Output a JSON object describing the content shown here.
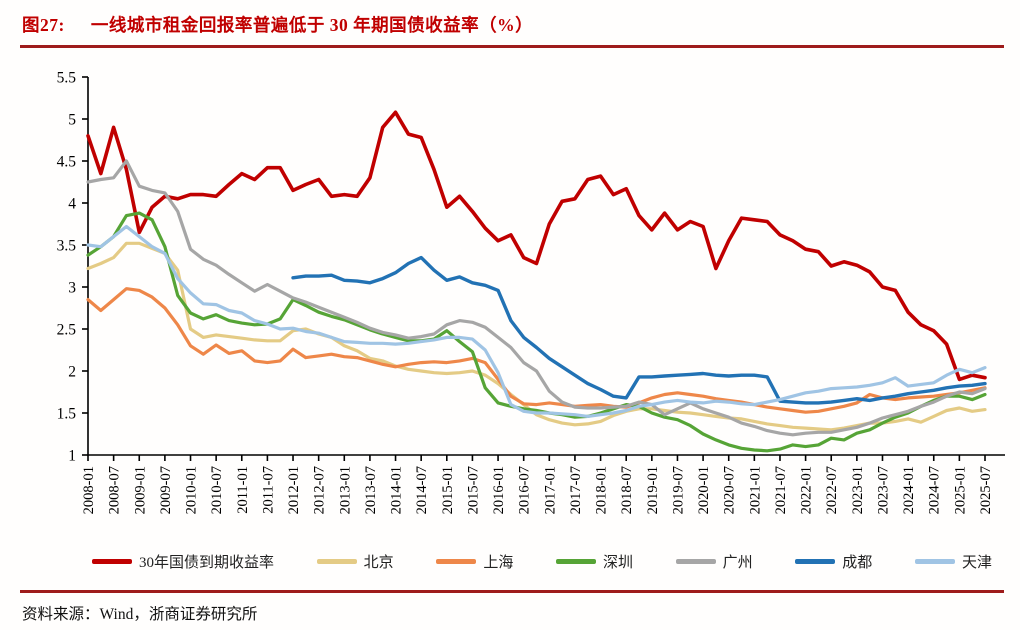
{
  "title": {
    "prefix": "图27:",
    "text": "一线城市租金回报率普遍低于 30 年期国债收益率（%）"
  },
  "source": "资料来源：Wind，浙商证券研究所",
  "colors": {
    "accent": "#c00000",
    "divider": "#9e1b1b",
    "axis": "#000000"
  },
  "chart_data": {
    "type": "line",
    "title": "一线城市租金回报率普遍低于 30 年期国债收益率（%）",
    "x_start": "2008-01",
    "x_end": "2025-07",
    "sample_interval": "quarterly",
    "ylim": [
      1,
      5.5
    ],
    "y_ticks": [
      5.5,
      5,
      4.5,
      4,
      3.5,
      3,
      2.5,
      2,
      1.5,
      1
    ],
    "grid": false,
    "legend_position": "bottom",
    "x_tick_labels": [
      "2008-01",
      "2008-07",
      "2009-01",
      "2009-07",
      "2010-01",
      "2010-07",
      "2011-01",
      "2011-07",
      "2012-01",
      "2012-07",
      "2013-01",
      "2013-07",
      "2014-01",
      "2014-07",
      "2015-01",
      "2015-07",
      "2016-01",
      "2016-07",
      "2017-01",
      "2017-07",
      "2018-01",
      "2018-07",
      "2019-01",
      "2019-07",
      "2020-01",
      "2020-07",
      "2021-01",
      "2021-07",
      "2022-01",
      "2022-07",
      "2023-01",
      "2023-07",
      "2024-01",
      "2024-07",
      "2025-01",
      "2025-07"
    ],
    "series": [
      {
        "name": "30年国债到期收益率",
        "color": "#c00000",
        "width": 3.6,
        "values": [
          4.8,
          4.35,
          4.9,
          4.4,
          3.65,
          3.95,
          4.08,
          4.05,
          4.1,
          4.1,
          4.08,
          4.22,
          4.35,
          4.28,
          4.42,
          4.42,
          4.15,
          4.22,
          4.28,
          4.08,
          4.1,
          4.08,
          4.3,
          4.9,
          5.08,
          4.82,
          4.78,
          4.4,
          3.95,
          4.08,
          3.9,
          3.7,
          3.55,
          3.62,
          3.35,
          3.28,
          3.75,
          4.02,
          4.05,
          4.28,
          4.32,
          4.1,
          4.17,
          3.85,
          3.68,
          3.88,
          3.68,
          3.78,
          3.72,
          3.22,
          3.55,
          3.82,
          3.8,
          3.78,
          3.62,
          3.55,
          3.45,
          3.42,
          3.25,
          3.3,
          3.26,
          3.18,
          3.0,
          2.96,
          2.7,
          2.55,
          2.48,
          2.32,
          1.9,
          1.95,
          1.92
        ]
      },
      {
        "name": "北京",
        "color": "#e4cb85",
        "width": 3.2,
        "values": [
          3.22,
          3.28,
          3.35,
          3.52,
          3.52,
          3.46,
          3.4,
          3.2,
          2.5,
          2.4,
          2.43,
          2.41,
          2.39,
          2.37,
          2.36,
          2.36,
          2.48,
          2.5,
          2.44,
          2.4,
          2.3,
          2.24,
          2.15,
          2.12,
          2.06,
          2.02,
          2.0,
          1.98,
          1.97,
          1.98,
          2.0,
          1.95,
          1.85,
          1.72,
          1.6,
          1.48,
          1.42,
          1.38,
          1.36,
          1.37,
          1.4,
          1.47,
          1.52,
          1.55,
          1.55,
          1.53,
          1.51,
          1.5,
          1.48,
          1.46,
          1.44,
          1.43,
          1.4,
          1.37,
          1.35,
          1.33,
          1.32,
          1.31,
          1.3,
          1.32,
          1.35,
          1.38,
          1.38,
          1.4,
          1.43,
          1.39,
          1.46,
          1.53,
          1.56,
          1.52,
          1.54
        ]
      },
      {
        "name": "上海",
        "color": "#ee8749",
        "width": 3.2,
        "values": [
          2.85,
          2.72,
          2.85,
          2.98,
          2.96,
          2.88,
          2.75,
          2.55,
          2.3,
          2.2,
          2.31,
          2.21,
          2.24,
          2.12,
          2.1,
          2.12,
          2.26,
          2.16,
          2.18,
          2.2,
          2.17,
          2.16,
          2.12,
          2.08,
          2.05,
          2.08,
          2.1,
          2.11,
          2.1,
          2.12,
          2.15,
          2.1,
          1.9,
          1.7,
          1.61,
          1.6,
          1.62,
          1.6,
          1.58,
          1.59,
          1.6,
          1.58,
          1.57,
          1.62,
          1.68,
          1.72,
          1.74,
          1.72,
          1.7,
          1.67,
          1.65,
          1.63,
          1.6,
          1.57,
          1.55,
          1.53,
          1.51,
          1.52,
          1.55,
          1.58,
          1.62,
          1.72,
          1.68,
          1.66,
          1.68,
          1.69,
          1.7,
          1.72,
          1.74,
          1.77,
          1.8
        ]
      },
      {
        "name": "深圳",
        "color": "#56a436",
        "width": 3.2,
        "values": [
          3.38,
          3.48,
          3.6,
          3.85,
          3.88,
          3.8,
          3.48,
          2.9,
          2.69,
          2.62,
          2.67,
          2.6,
          2.57,
          2.55,
          2.56,
          2.62,
          2.85,
          2.78,
          2.7,
          2.65,
          2.61,
          2.55,
          2.49,
          2.44,
          2.4,
          2.36,
          2.36,
          2.38,
          2.48,
          2.35,
          2.23,
          1.8,
          1.62,
          1.58,
          1.55,
          1.53,
          1.5,
          1.48,
          1.45,
          1.46,
          1.5,
          1.55,
          1.6,
          1.58,
          1.5,
          1.45,
          1.42,
          1.35,
          1.25,
          1.18,
          1.12,
          1.08,
          1.06,
          1.05,
          1.07,
          1.12,
          1.1,
          1.12,
          1.2,
          1.18,
          1.26,
          1.3,
          1.38,
          1.45,
          1.5,
          1.58,
          1.65,
          1.7,
          1.7,
          1.66,
          1.72
        ]
      },
      {
        "name": "广州",
        "color": "#a6a6a6",
        "width": 3.2,
        "values": [
          4.25,
          4.28,
          4.3,
          4.5,
          4.2,
          4.15,
          4.12,
          3.9,
          3.45,
          3.33,
          3.26,
          3.15,
          3.05,
          2.95,
          3.03,
          2.95,
          2.87,
          2.82,
          2.76,
          2.7,
          2.64,
          2.58,
          2.51,
          2.46,
          2.43,
          2.39,
          2.41,
          2.44,
          2.55,
          2.6,
          2.58,
          2.52,
          2.4,
          2.28,
          2.1,
          2.0,
          1.76,
          1.63,
          1.57,
          1.56,
          1.56,
          1.57,
          1.58,
          1.63,
          1.6,
          1.48,
          1.55,
          1.62,
          1.55,
          1.5,
          1.45,
          1.38,
          1.34,
          1.29,
          1.26,
          1.24,
          1.26,
          1.27,
          1.27,
          1.3,
          1.33,
          1.38,
          1.44,
          1.48,
          1.52,
          1.58,
          1.63,
          1.7,
          1.75,
          1.73,
          1.79
        ]
      },
      {
        "name": "成都",
        "color": "#2272b4",
        "width": 3.4,
        "values": [
          null,
          null,
          null,
          null,
          null,
          null,
          null,
          null,
          null,
          null,
          null,
          null,
          null,
          null,
          null,
          null,
          3.11,
          3.13,
          3.13,
          3.14,
          3.08,
          3.07,
          3.05,
          3.1,
          3.17,
          3.28,
          3.35,
          3.2,
          3.08,
          3.12,
          3.05,
          3.02,
          2.96,
          2.6,
          2.4,
          2.28,
          2.15,
          2.05,
          1.95,
          1.85,
          1.78,
          1.7,
          1.68,
          1.93,
          1.93,
          1.94,
          1.95,
          1.96,
          1.97,
          1.95,
          1.94,
          1.95,
          1.95,
          1.93,
          1.64,
          1.63,
          1.62,
          1.62,
          1.63,
          1.65,
          1.67,
          1.65,
          1.68,
          1.7,
          1.73,
          1.75,
          1.77,
          1.8,
          1.82,
          1.83,
          1.85
        ]
      },
      {
        "name": "天津",
        "color": "#a0c4e4",
        "width": 3.2,
        "values": [
          3.5,
          3.48,
          3.6,
          3.72,
          3.6,
          3.48,
          3.4,
          3.1,
          2.93,
          2.8,
          2.79,
          2.72,
          2.69,
          2.6,
          2.56,
          2.5,
          2.51,
          2.47,
          2.45,
          2.4,
          2.35,
          2.34,
          2.33,
          2.33,
          2.32,
          2.33,
          2.35,
          2.37,
          2.4,
          2.4,
          2.38,
          2.25,
          1.98,
          1.6,
          1.52,
          1.5,
          1.5,
          1.49,
          1.48,
          1.46,
          1.48,
          1.5,
          1.53,
          1.58,
          1.6,
          1.63,
          1.65,
          1.63,
          1.62,
          1.64,
          1.63,
          1.61,
          1.6,
          1.63,
          1.66,
          1.7,
          1.74,
          1.76,
          1.79,
          1.8,
          1.81,
          1.83,
          1.86,
          1.92,
          1.82,
          1.84,
          1.86,
          1.95,
          2.02,
          1.98,
          2.04
        ]
      }
    ]
  }
}
